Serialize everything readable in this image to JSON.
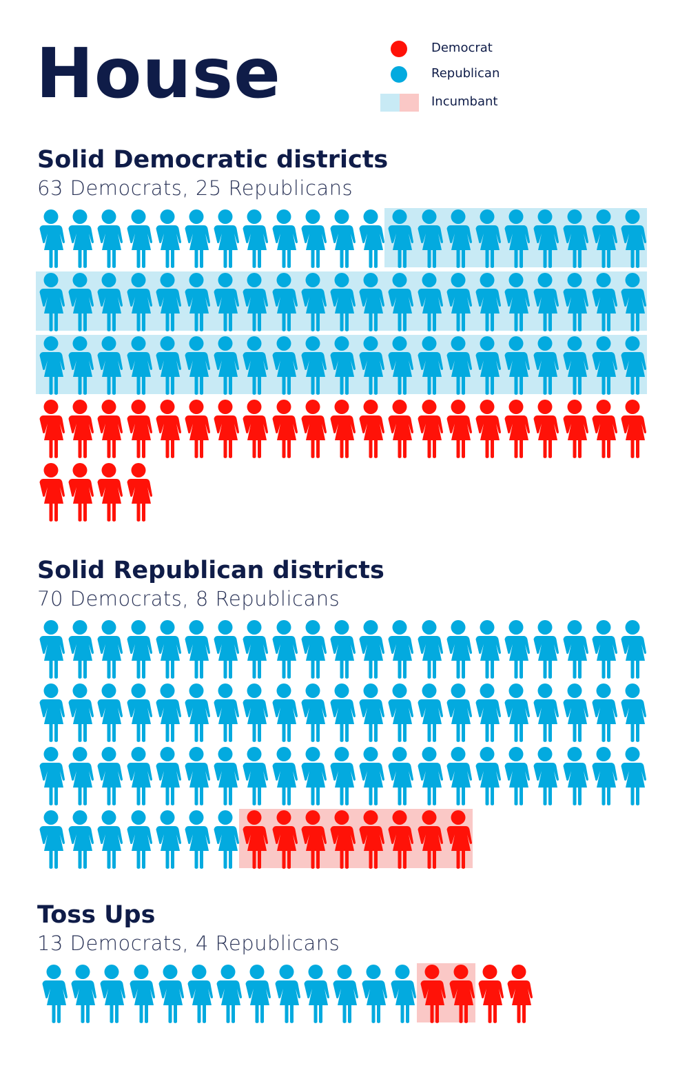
{
  "title": "House",
  "legend": [
    {
      "label": "Democrat",
      "color": "#ff1208",
      "kind": "dot"
    },
    {
      "label": "Republican",
      "color": "#03aadf",
      "kind": "dot"
    },
    {
      "label": "Incumbant",
      "colors": [
        "#c8eaf5",
        "#fac8c6"
      ],
      "kind": "swatch"
    }
  ],
  "colors": {
    "republican": "#03aadf",
    "democrat": "#ff1208",
    "republican_incumbent_bg": "#c8eaf5",
    "democrat_incumbent_bg": "#fac8c6",
    "text": "#0f1c48"
  },
  "chart_data": {
    "type": "pictogram",
    "icons_per_row": 21,
    "sections": [
      {
        "title": "Solid Democratic districts",
        "subtitle": "63 Democrats, 25 Republicans",
        "blue_icons": 63,
        "red_icons": 25,
        "blue_incumbents": 51,
        "red_incumbents": 0
      },
      {
        "title": "Solid Republican districts",
        "subtitle": "70 Democrats, 8 Republicans",
        "blue_icons": 70,
        "red_icons": 8,
        "blue_incumbents": 0,
        "red_incumbents": 8
      },
      {
        "title": "Toss Ups",
        "subtitle": "13 Democrats, 4 Republicans",
        "blue_icons": 13,
        "red_icons": 4,
        "blue_incumbents": 0,
        "red_incumbents": 2
      }
    ]
  }
}
